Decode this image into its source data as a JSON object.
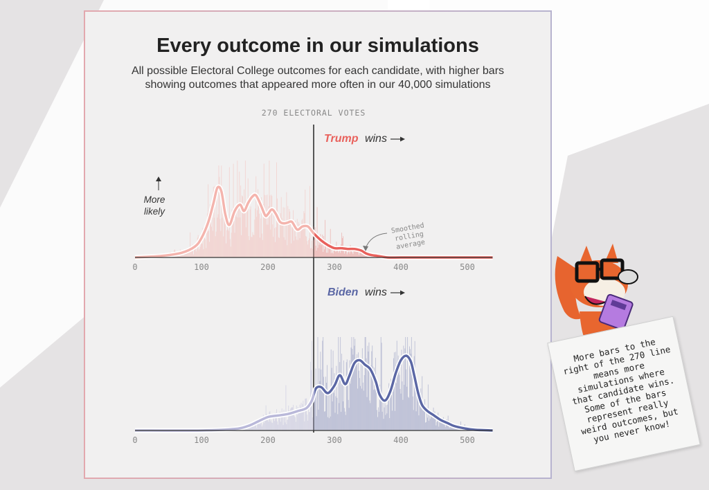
{
  "title": "Every outcome in our simulations",
  "subtitle_line1": "All possible Electoral College outcomes for each candidate, with higher bars",
  "subtitle_line2": "showing outcomes that appeared more often in our 40,000 simulations",
  "threshold_label": "270 ELECTORAL VOTES",
  "annotations": {
    "more": "More",
    "likely": "likely",
    "smooth1": "Smoothed",
    "smooth2": "rolling",
    "smooth3": "average",
    "wins": "wins"
  },
  "note_text": "More bars to the right of the 270 line means more simulations where that candidate wins. Some of the bars represent really weird outcomes, but you never know!",
  "colors": {
    "trump": "#e9615c",
    "trump_light": "#f4b4ad",
    "biden": "#5b67a5",
    "biden_light": "#b9b8d9",
    "axis": "#333333"
  },
  "chart_data": [
    {
      "type": "area",
      "name": "Trump",
      "label": "Trump",
      "threshold": 270,
      "xlim": [
        0,
        538
      ],
      "x_ticks": [
        0,
        100,
        200,
        300,
        400,
        500
      ],
      "smooth_x": [
        0,
        40,
        70,
        90,
        100,
        110,
        118,
        124,
        130,
        136,
        142,
        150,
        158,
        164,
        170,
        176,
        182,
        190,
        196,
        200,
        206,
        212,
        218,
        224,
        230,
        236,
        244,
        252,
        260,
        266,
        270,
        280,
        290,
        300,
        310,
        320,
        330,
        340,
        348,
        356,
        365,
        380,
        400,
        440,
        500,
        538
      ],
      "smooth_y": [
        0.0,
        0.02,
        0.06,
        0.14,
        0.25,
        0.45,
        0.7,
        0.9,
        0.85,
        0.55,
        0.42,
        0.6,
        0.68,
        0.6,
        0.7,
        0.78,
        0.8,
        0.66,
        0.54,
        0.56,
        0.62,
        0.56,
        0.46,
        0.44,
        0.45,
        0.46,
        0.36,
        0.4,
        0.4,
        0.34,
        0.3,
        0.22,
        0.16,
        0.12,
        0.12,
        0.11,
        0.11,
        0.09,
        0.05,
        0.03,
        0.02,
        0.0,
        0.0,
        0.0,
        0.0,
        0.0
      ]
    },
    {
      "type": "area",
      "name": "Biden",
      "label": "Biden",
      "threshold": 270,
      "xlim": [
        0,
        538
      ],
      "x_ticks": [
        0,
        100,
        200,
        300,
        400,
        500
      ],
      "smooth_x": [
        0,
        100,
        150,
        170,
        185,
        200,
        215,
        230,
        245,
        258,
        266,
        272,
        280,
        290,
        300,
        308,
        316,
        322,
        330,
        338,
        346,
        354,
        362,
        368,
        376,
        384,
        392,
        400,
        408,
        415,
        420,
        426,
        432,
        440,
        450,
        460,
        470,
        480,
        495,
        510,
        538
      ],
      "smooth_y": [
        0.0,
        0.0,
        0.02,
        0.06,
        0.12,
        0.18,
        0.2,
        0.22,
        0.26,
        0.3,
        0.4,
        0.56,
        0.58,
        0.5,
        0.6,
        0.74,
        0.62,
        0.72,
        0.9,
        0.94,
        0.88,
        0.82,
        0.66,
        0.48,
        0.4,
        0.52,
        0.76,
        0.94,
        1.0,
        0.92,
        0.74,
        0.5,
        0.34,
        0.26,
        0.2,
        0.14,
        0.1,
        0.06,
        0.03,
        0.01,
        0.0
      ]
    }
  ]
}
